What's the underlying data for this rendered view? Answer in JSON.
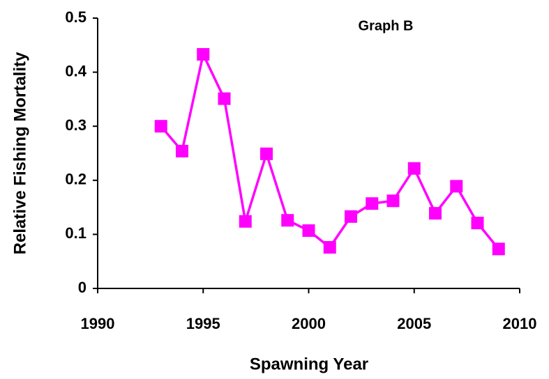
{
  "chart_data": {
    "type": "line",
    "title": "Graph B",
    "x_label": "Spawning Year",
    "y_label": "Relative Fishing Mortality",
    "x": [
      1993,
      1994,
      1995,
      1996,
      1997,
      1998,
      1999,
      2000,
      2001,
      2002,
      2003,
      2004,
      2005,
      2006,
      2007,
      2008,
      2009
    ],
    "series": [
      {
        "color": "#ff00ff",
        "values": [
          0.3,
          0.254,
          0.433,
          0.351,
          0.124,
          0.249,
          0.126,
          0.107,
          0.076,
          0.133,
          0.157,
          0.162,
          0.222,
          0.139,
          0.189,
          0.121,
          0.073
        ]
      }
    ],
    "xlim": [
      1990,
      2010
    ],
    "xticks": [
      1990,
      1995,
      2000,
      2005,
      2010
    ],
    "ylim": [
      0,
      0.5
    ],
    "yticks": [
      0,
      0.1,
      0.2,
      0.3,
      0.4,
      0.5
    ],
    "marker": "square"
  }
}
